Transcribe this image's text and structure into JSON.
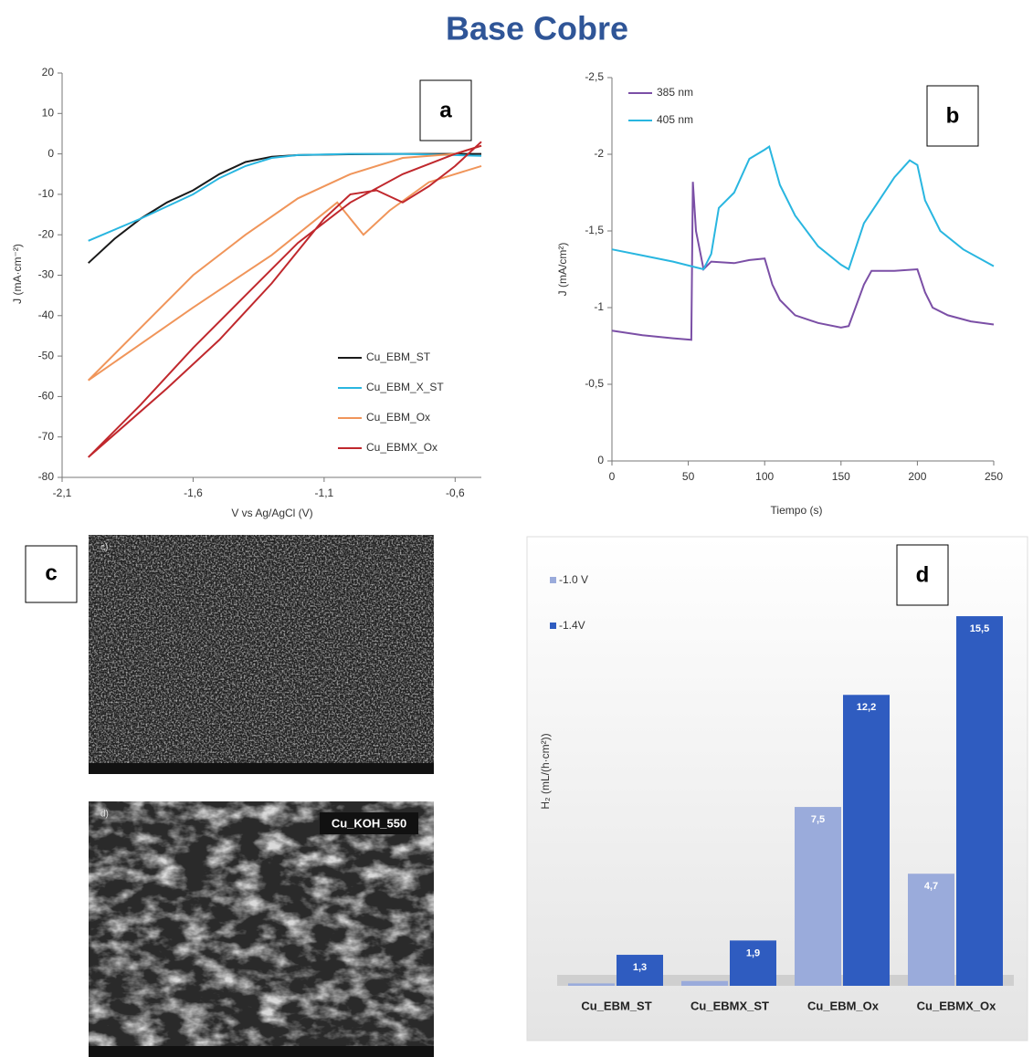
{
  "title": "Base Cobre",
  "images": {
    "label": "c",
    "panels": [
      {
        "tag": "c)"
      },
      {
        "tag": "d)",
        "caption": "Cu_KOH_550"
      }
    ]
  },
  "chart_data": [
    {
      "type": "line",
      "annotation": "a",
      "x_label": "V vs Ag/AgCl (V)",
      "y_label": "J (mA·cm⁻²)",
      "xlim": [
        -2.1,
        -0.5
      ],
      "xticks": [
        {
          "value": -2.1,
          "label": "-2,1"
        },
        {
          "value": -1.6,
          "label": "-1,6"
        },
        {
          "value": -1.1,
          "label": "-1,1"
        },
        {
          "value": -0.6,
          "label": "-0,6"
        }
      ],
      "ylim": [
        -80,
        20
      ],
      "yticks": [
        -80,
        -70,
        -60,
        -50,
        -40,
        -30,
        -20,
        -10,
        0,
        10,
        20
      ],
      "legend": "lower right",
      "series": [
        {
          "name": "Cu_EBM_ST",
          "color": "#1a1a1a",
          "x": [
            -2.0,
            -1.9,
            -1.8,
            -1.7,
            -1.6,
            -1.5,
            -1.4,
            -1.3,
            -1.2,
            -1.0,
            -0.8,
            -0.6,
            -0.5
          ],
          "values": [
            -27,
            -21,
            -16,
            -12,
            -9,
            -5,
            -2,
            -0.7,
            -0.3,
            -0.1,
            0,
            0,
            0
          ]
        },
        {
          "name": "Cu_EBM_X_ST",
          "color": "#29b6e0",
          "x": [
            -2.0,
            -1.8,
            -1.6,
            -1.5,
            -1.4,
            -1.3,
            -1.2,
            -1.0,
            -0.8,
            -0.6,
            -0.5
          ],
          "values": [
            -21.5,
            -16,
            -10,
            -6,
            -3,
            -1,
            -0.3,
            0,
            0,
            -0.3,
            -0.5
          ]
        },
        {
          "name": "Cu_EBM_Ox",
          "color": "#f0955a",
          "x": [
            -0.5,
            -0.7,
            -0.85,
            -0.95,
            -1.05,
            -1.3,
            -1.6,
            -1.8,
            -2.0,
            -1.8,
            -1.6,
            -1.4,
            -1.2,
            -1.0,
            -0.8,
            -0.6,
            -0.5
          ],
          "values": [
            -3,
            -7,
            -14,
            -20,
            -12,
            -25,
            -38,
            -47,
            -56,
            -43,
            -30,
            -20,
            -11,
            -5,
            -1,
            0,
            2
          ]
        },
        {
          "name": "Cu_EBMX_Ox",
          "color": "#c0282d",
          "x": [
            -0.5,
            -0.6,
            -0.7,
            -0.8,
            -0.9,
            -1.0,
            -1.1,
            -1.3,
            -1.5,
            -1.7,
            -2.0,
            -1.8,
            -1.6,
            -1.4,
            -1.2,
            -1.0,
            -0.8,
            -0.6,
            -0.5
          ],
          "values": [
            3,
            -3,
            -8,
            -12,
            -9,
            -10,
            -16,
            -32,
            -46,
            -58,
            -75,
            -62,
            -48,
            -35,
            -22,
            -12,
            -5,
            0,
            2
          ]
        }
      ]
    },
    {
      "type": "line",
      "annotation": "b",
      "x_label": "Tiempo (s)",
      "y_label": "J (mA/cm²)",
      "xlim": [
        0,
        250
      ],
      "xticks": [
        0,
        50,
        100,
        150,
        200,
        250
      ],
      "ylim": [
        0,
        -2.5
      ],
      "yticks": [
        0,
        {
          "value": -0.5,
          "label": "-0,5"
        },
        -1,
        {
          "value": -1.5,
          "label": "-1,5"
        },
        -2,
        {
          "value": -2.5,
          "label": "-2,5"
        }
      ],
      "legend": "upper left",
      "series": [
        {
          "name": "385 nm",
          "color": "#7b4fa6",
          "x": [
            0,
            20,
            40,
            52,
            53,
            55,
            60,
            65,
            80,
            90,
            100,
            105,
            110,
            120,
            135,
            150,
            155,
            165,
            170,
            185,
            200,
            205,
            210,
            220,
            235,
            250
          ],
          "values": [
            -0.85,
            -0.82,
            -0.8,
            -0.79,
            -1.82,
            -1.5,
            -1.25,
            -1.3,
            -1.29,
            -1.31,
            -1.32,
            -1.15,
            -1.05,
            -0.95,
            -0.9,
            -0.87,
            -0.88,
            -1.15,
            -1.24,
            -1.24,
            -1.25,
            -1.1,
            -1.0,
            -0.95,
            -0.91,
            -0.89
          ]
        },
        {
          "name": "405 nm",
          "color": "#29b6e0",
          "x": [
            0,
            20,
            40,
            60,
            65,
            70,
            80,
            90,
            100,
            103,
            110,
            120,
            135,
            150,
            155,
            165,
            175,
            185,
            195,
            200,
            205,
            215,
            230,
            250
          ],
          "values": [
            -1.38,
            -1.34,
            -1.3,
            -1.25,
            -1.35,
            -1.65,
            -1.75,
            -1.97,
            -2.03,
            -2.05,
            -1.8,
            -1.6,
            -1.4,
            -1.28,
            -1.25,
            -1.55,
            -1.7,
            -1.85,
            -1.96,
            -1.93,
            -1.7,
            -1.5,
            -1.38,
            -1.27
          ]
        }
      ]
    },
    {
      "type": "bar",
      "annotation": "d",
      "y_label": "H₂ (mL/(h·cm²))",
      "ylim": [
        0,
        16
      ],
      "legend": "upper left",
      "categories": [
        "Cu_EBM_ST",
        "Cu_EBMX_ST",
        "Cu_EBM_Ox",
        "Cu_EBMX_Ox"
      ],
      "series": [
        {
          "name": "-1.0 V",
          "color": "#9aabdb",
          "values": [
            0.1,
            0.2,
            7.5,
            4.7
          ],
          "value_labels": [
            null,
            null,
            "7,5",
            "4,7"
          ]
        },
        {
          "name": "-1.4V",
          "color": "#2f5cc0",
          "values": [
            1.3,
            1.9,
            12.2,
            15.5
          ],
          "value_labels": [
            "1,3",
            "1,9",
            "12,2",
            "15,5"
          ]
        }
      ]
    }
  ]
}
